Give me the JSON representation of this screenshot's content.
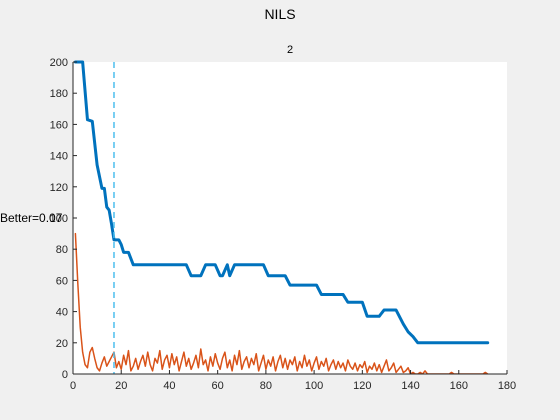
{
  "figure_title": "NILS",
  "chart_data": {
    "type": "line",
    "title": "2",
    "annotation": "Better=0.07",
    "xlim": [
      0,
      180
    ],
    "ylim": [
      0,
      200
    ],
    "xticks": [
      0,
      20,
      40,
      60,
      80,
      100,
      120,
      140,
      160,
      180
    ],
    "yticks": [
      0,
      20,
      40,
      60,
      80,
      100,
      120,
      140,
      160,
      180,
      200
    ],
    "grid": false,
    "vline": {
      "x": 17,
      "style": "dashed",
      "color": "#4DBEEE"
    },
    "series": [
      {
        "color": "#0072BD",
        "linewidth": 3,
        "points": [
          [
            1,
            200
          ],
          [
            4,
            200
          ],
          [
            6,
            163
          ],
          [
            8,
            162
          ],
          [
            10,
            134
          ],
          [
            12,
            119
          ],
          [
            13,
            119
          ],
          [
            14,
            107
          ],
          [
            15,
            105
          ],
          [
            16,
            96
          ],
          [
            17,
            86
          ],
          [
            19,
            86
          ],
          [
            20,
            83
          ],
          [
            21,
            78
          ],
          [
            23,
            78
          ],
          [
            25,
            70
          ],
          [
            47,
            70
          ],
          [
            49,
            63
          ],
          [
            53,
            63
          ],
          [
            55,
            70
          ],
          [
            59,
            70
          ],
          [
            61,
            63
          ],
          [
            62,
            63
          ],
          [
            64,
            70
          ],
          [
            65,
            63
          ],
          [
            67,
            70
          ],
          [
            79,
            70
          ],
          [
            81,
            63
          ],
          [
            88,
            63
          ],
          [
            90,
            57
          ],
          [
            101,
            57
          ],
          [
            103,
            51
          ],
          [
            112,
            51
          ],
          [
            114,
            46
          ],
          [
            120,
            46
          ],
          [
            122,
            37
          ],
          [
            127,
            37
          ],
          [
            129,
            41
          ],
          [
            134,
            41
          ],
          [
            137,
            32
          ],
          [
            139,
            27
          ],
          [
            141,
            24
          ],
          [
            143,
            20
          ],
          [
            172,
            20
          ]
        ]
      },
      {
        "color": "#D95319",
        "linewidth": 1.5,
        "points": [
          [
            1,
            90
          ],
          [
            2,
            58
          ],
          [
            3,
            30
          ],
          [
            4,
            14
          ],
          [
            5,
            6
          ],
          [
            6,
            4
          ],
          [
            7,
            14
          ],
          [
            8,
            17
          ],
          [
            9,
            10
          ],
          [
            10,
            4
          ],
          [
            11,
            2
          ],
          [
            12,
            7
          ],
          [
            13,
            11
          ],
          [
            14,
            5
          ],
          [
            15,
            8
          ],
          [
            16,
            11
          ],
          [
            17,
            14
          ],
          [
            18,
            4
          ],
          [
            19,
            8
          ],
          [
            20,
            3
          ],
          [
            21,
            12
          ],
          [
            22,
            6
          ],
          [
            23,
            15
          ],
          [
            24,
            2
          ],
          [
            25,
            5
          ],
          [
            26,
            10
          ],
          [
            27,
            3
          ],
          [
            28,
            8
          ],
          [
            29,
            12
          ],
          [
            30,
            5
          ],
          [
            31,
            14
          ],
          [
            32,
            6
          ],
          [
            33,
            2
          ],
          [
            34,
            10
          ],
          [
            35,
            7
          ],
          [
            36,
            15
          ],
          [
            37,
            3
          ],
          [
            38,
            9
          ],
          [
            39,
            12
          ],
          [
            40,
            4
          ],
          [
            41,
            13
          ],
          [
            42,
            6
          ],
          [
            43,
            11
          ],
          [
            44,
            2
          ],
          [
            45,
            8
          ],
          [
            46,
            14
          ],
          [
            47,
            5
          ],
          [
            48,
            10
          ],
          [
            49,
            3
          ],
          [
            50,
            7
          ],
          [
            51,
            12
          ],
          [
            52,
            4
          ],
          [
            53,
            16
          ],
          [
            54,
            6
          ],
          [
            55,
            9
          ],
          [
            56,
            2
          ],
          [
            57,
            11
          ],
          [
            58,
            5
          ],
          [
            59,
            13
          ],
          [
            60,
            7
          ],
          [
            61,
            3
          ],
          [
            62,
            10
          ],
          [
            63,
            14
          ],
          [
            64,
            4
          ],
          [
            65,
            9
          ],
          [
            66,
            2
          ],
          [
            67,
            12
          ],
          [
            68,
            6
          ],
          [
            69,
            15
          ],
          [
            70,
            3
          ],
          [
            71,
            8
          ],
          [
            72,
            11
          ],
          [
            73,
            4
          ],
          [
            74,
            10
          ],
          [
            75,
            6
          ],
          [
            76,
            13
          ],
          [
            77,
            2
          ],
          [
            78,
            7
          ],
          [
            79,
            12
          ],
          [
            80,
            3
          ],
          [
            81,
            9
          ],
          [
            82,
            5
          ],
          [
            83,
            11
          ],
          [
            84,
            2
          ],
          [
            85,
            8
          ],
          [
            86,
            12
          ],
          [
            87,
            4
          ],
          [
            88,
            10
          ],
          [
            89,
            3
          ],
          [
            90,
            9
          ],
          [
            91,
            6
          ],
          [
            92,
            11
          ],
          [
            93,
            2
          ],
          [
            94,
            8
          ],
          [
            95,
            4
          ],
          [
            96,
            12
          ],
          [
            97,
            5
          ],
          [
            98,
            9
          ],
          [
            99,
            2
          ],
          [
            100,
            7
          ],
          [
            101,
            11
          ],
          [
            102,
            3
          ],
          [
            103,
            8
          ],
          [
            104,
            5
          ],
          [
            105,
            10
          ],
          [
            106,
            2
          ],
          [
            107,
            6
          ],
          [
            108,
            9
          ],
          [
            109,
            3
          ],
          [
            110,
            8
          ],
          [
            111,
            4
          ],
          [
            112,
            7
          ],
          [
            113,
            2
          ],
          [
            114,
            9
          ],
          [
            115,
            5
          ],
          [
            116,
            3
          ],
          [
            117,
            7
          ],
          [
            118,
            2
          ],
          [
            119,
            6
          ],
          [
            120,
            4
          ],
          [
            121,
            8
          ],
          [
            122,
            1
          ],
          [
            123,
            5
          ],
          [
            124,
            3
          ],
          [
            125,
            7
          ],
          [
            126,
            2
          ],
          [
            127,
            6
          ],
          [
            128,
            1
          ],
          [
            129,
            5
          ],
          [
            130,
            9
          ],
          [
            131,
            2
          ],
          [
            132,
            4
          ],
          [
            133,
            7
          ],
          [
            134,
            1
          ],
          [
            135,
            3
          ],
          [
            136,
            5
          ],
          [
            137,
            1
          ],
          [
            138,
            2
          ],
          [
            139,
            4
          ],
          [
            140,
            0
          ],
          [
            141,
            1
          ],
          [
            142,
            0
          ],
          [
            143,
            0
          ],
          [
            144,
            1
          ],
          [
            145,
            0
          ],
          [
            146,
            2
          ],
          [
            147,
            0
          ],
          [
            148,
            0
          ],
          [
            149,
            0
          ],
          [
            150,
            0
          ],
          [
            151,
            0
          ],
          [
            152,
            0
          ],
          [
            153,
            0
          ],
          [
            154,
            0
          ],
          [
            155,
            0
          ],
          [
            156,
            0
          ],
          [
            157,
            1
          ],
          [
            158,
            0
          ],
          [
            159,
            0
          ],
          [
            160,
            0
          ],
          [
            161,
            0
          ],
          [
            162,
            0
          ],
          [
            163,
            0
          ],
          [
            164,
            0
          ],
          [
            165,
            0
          ],
          [
            166,
            0
          ],
          [
            167,
            0
          ],
          [
            168,
            0
          ],
          [
            169,
            0
          ],
          [
            170,
            0
          ],
          [
            171,
            1
          ],
          [
            172,
            0
          ]
        ]
      }
    ]
  }
}
